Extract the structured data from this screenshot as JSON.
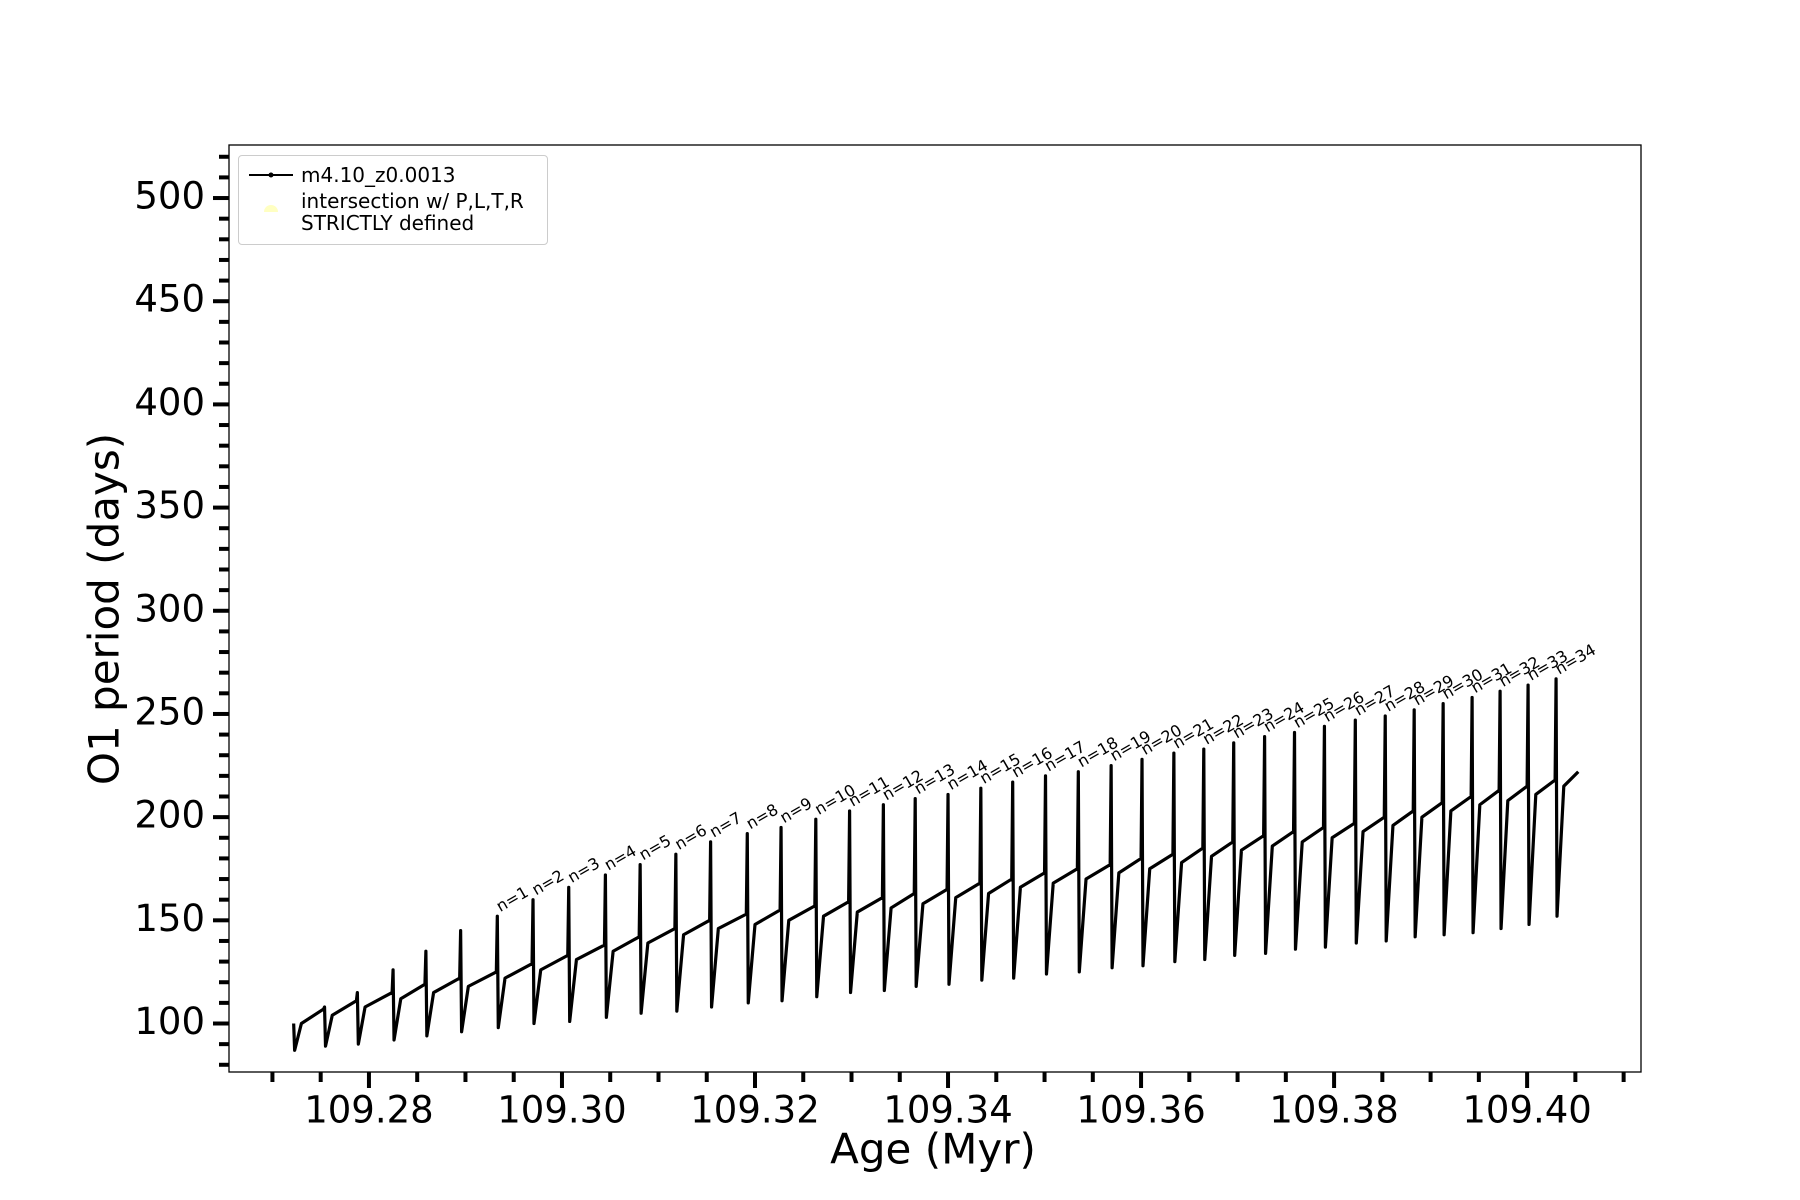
{
  "chart_data": {
    "type": "line",
    "xlabel": "Age (Myr)",
    "ylabel": "O1 period (days)",
    "xlim": [
      109.2655,
      109.4118
    ],
    "ylim": [
      76.5,
      525.7
    ],
    "xticks": [
      109.28,
      {
        "value": 109.3,
        "label": "109.30"
      },
      109.32,
      109.34,
      109.36,
      109.38,
      {
        "value": 109.4,
        "label": "109.40"
      }
    ],
    "xminor_ticks": [
      109.27,
      109.275,
      109.285,
      109.29,
      109.295,
      109.305,
      109.31,
      109.315,
      109.325,
      109.33,
      109.335,
      109.345,
      109.35,
      109.355,
      109.365,
      109.37,
      109.375,
      109.385,
      109.39,
      109.395,
      109.405,
      109.41
    ],
    "yticks": [
      100,
      150,
      200,
      250,
      300,
      350,
      400,
      450,
      500
    ],
    "yminor_ticks": [
      80,
      90,
      110,
      120,
      130,
      140,
      160,
      170,
      180,
      190,
      210,
      220,
      230,
      240,
      260,
      270,
      280,
      290,
      310,
      320,
      330,
      340,
      360,
      370,
      380,
      390,
      410,
      420,
      430,
      440,
      460,
      470,
      480,
      490,
      510,
      520
    ],
    "grid": false,
    "legend": "upper left",
    "series": [
      {
        "name": "m4.10_z0.0013",
        "color": "#000000",
        "type": "line",
        "x": [
          109.2722,
          109.2723,
          109.273,
          109.2753,
          109.2754,
          109.2755,
          109.2762,
          109.2787,
          109.2788,
          109.2789,
          109.2796,
          109.2824,
          109.2825,
          109.2826,
          109.2833,
          109.2858,
          109.2859,
          109.286,
          109.2867,
          109.2894,
          109.2895,
          109.2896,
          109.2903,
          109.2932,
          109.2933,
          109.2934,
          109.2941,
          109.2969,
          109.297,
          109.2971,
          109.2978,
          109.3006,
          109.3007,
          109.3008,
          109.3015,
          109.3044,
          109.3045,
          109.3046,
          109.3053,
          109.308,
          109.3081,
          109.3082,
          109.3089,
          109.3117,
          109.3118,
          109.3119,
          109.3126,
          109.3153,
          109.3154,
          109.3155,
          109.3162,
          109.3191,
          109.3192,
          109.3193,
          109.32,
          109.3226,
          109.3227,
          109.3228,
          109.3235,
          109.3262,
          109.3263,
          109.3264,
          109.3271,
          109.3297,
          109.3298,
          109.3299,
          109.3306,
          109.3332,
          109.3333,
          109.3334,
          109.3341,
          109.3365,
          109.3366,
          109.3367,
          109.3374,
          109.3399,
          109.34,
          109.3401,
          109.3408,
          109.3433,
          109.3434,
          109.3435,
          109.3442,
          109.3466,
          109.3467,
          109.3468,
          109.3475,
          109.35,
          109.3501,
          109.3502,
          109.3509,
          109.3534,
          109.3535,
          109.3536,
          109.3543,
          109.3568,
          109.3569,
          109.357,
          109.3577,
          109.36,
          109.3601,
          109.3602,
          109.3609,
          109.3633,
          109.3634,
          109.3635,
          109.3642,
          109.3664,
          109.3665,
          109.3666,
          109.3673,
          109.3695,
          109.3696,
          109.3697,
          109.3704,
          109.3727,
          109.3728,
          109.3729,
          109.3736,
          109.3758,
          109.3759,
          109.376,
          109.3767,
          109.3789,
          109.379,
          109.3791,
          109.3798,
          109.3821,
          109.3822,
          109.3823,
          109.383,
          109.3852,
          109.3853,
          109.3854,
          109.3861,
          109.3882,
          109.3883,
          109.3884,
          109.3891,
          109.3912,
          109.3913,
          109.3914,
          109.3921,
          109.3942,
          109.3943,
          109.3944,
          109.3951,
          109.3971,
          109.3972,
          109.3973,
          109.398,
          109.4,
          109.4001,
          109.4002,
          109.4009,
          109.4029,
          109.403,
          109.4031,
          109.4038,
          109.4053
        ],
        "values": [
          100,
          87,
          100,
          107,
          108,
          89,
          104,
          111,
          115,
          90,
          108,
          115,
          126,
          92,
          112,
          119,
          135,
          94,
          115,
          122,
          145,
          96,
          118,
          125,
          152,
          98,
          122,
          129,
          160,
          100,
          126,
          133,
          166,
          101,
          131,
          138,
          172,
          103,
          135,
          142,
          177,
          105,
          139,
          146,
          182,
          106,
          143,
          150,
          188,
          108,
          146,
          153,
          192,
          110,
          148,
          155,
          195,
          111,
          150,
          157,
          199,
          113,
          152,
          159,
          203,
          115,
          154,
          161,
          206,
          116,
          156,
          163,
          209,
          118,
          158,
          165,
          211,
          119,
          161,
          168,
          214,
          121,
          163,
          170,
          217,
          122,
          166,
          173,
          220,
          124,
          168,
          175,
          222,
          125,
          170,
          177,
          225,
          127,
          173,
          180,
          228,
          128,
          175,
          182,
          231,
          130,
          178,
          185,
          233,
          131,
          181,
          188,
          236,
          133,
          184,
          191,
          239,
          134,
          186,
          193,
          241,
          136,
          188,
          195,
          244,
          137,
          190,
          197,
          247,
          139,
          193,
          200,
          249,
          140,
          196,
          203,
          252,
          142,
          200,
          207,
          255,
          143,
          203,
          210,
          258,
          144,
          206,
          213,
          261,
          146,
          208,
          215,
          264,
          148,
          211,
          218,
          267,
          152,
          215,
          222
        ]
      },
      {
        "name": "intersection w/ P,L,T,R\nSTRICTLY defined",
        "color": "#ffffb3",
        "type": "scatter",
        "x": [],
        "values": []
      }
    ],
    "annotations": [
      "n=1",
      "n=2",
      "n=3",
      "n=4",
      "n=5",
      "n=6",
      "n=7",
      "n=8",
      "n=9",
      "n=10",
      "n=11",
      "n=12",
      "n=13",
      "n=14",
      "n=15",
      "n=16",
      "n=17",
      "n=18",
      "n=19",
      "n=20",
      "n=21",
      "n=22",
      "n=23",
      "n=24",
      "n=25",
      "n=26",
      "n=27",
      "n=28",
      "n=29",
      "n=30",
      "n=31",
      "n=32",
      "n=33",
      "n=34"
    ]
  }
}
